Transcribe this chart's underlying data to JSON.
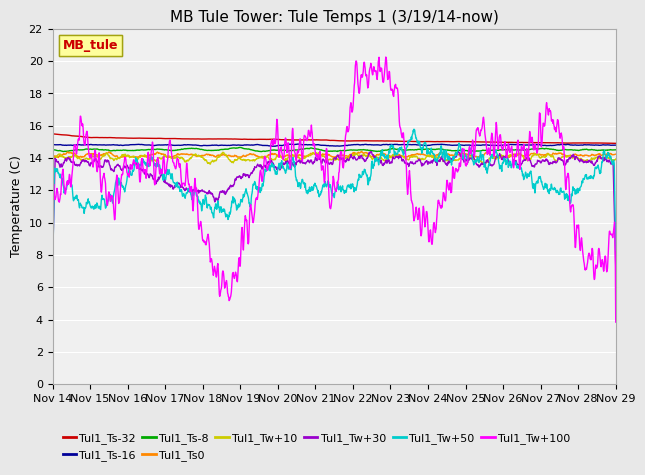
{
  "title": "MB Tule Tower: Tule Temps 1 (3/19/14-now)",
  "ylabel": "Temperature (C)",
  "ylim": [
    0,
    22
  ],
  "yticks": [
    0,
    2,
    4,
    6,
    8,
    10,
    12,
    14,
    16,
    18,
    20,
    22
  ],
  "xlim": [
    0,
    15
  ],
  "xtick_labels": [
    "Nov 14",
    "Nov 15",
    "Nov 16",
    "Nov 17",
    "Nov 18",
    "Nov 19",
    "Nov 20",
    "Nov 21",
    "Nov 22",
    "Nov 23",
    "Nov 24",
    "Nov 25",
    "Nov 26",
    "Nov 27",
    "Nov 28",
    "Nov 29"
  ],
  "legend_label": "MB_tule",
  "series_labels": [
    "Tul1_Ts-32",
    "Tul1_Ts-16",
    "Tul1_Ts-8",
    "Tul1_Ts0",
    "Tul1_Tw+10",
    "Tul1_Tw+30",
    "Tul1_Tw+50",
    "Tul1_Tw+100"
  ],
  "series_colors": [
    "#cc0000",
    "#000099",
    "#00aa00",
    "#ff8800",
    "#cccc00",
    "#9900cc",
    "#00cccc",
    "#ff00ff"
  ],
  "background_color": "#e8e8e8",
  "plot_bg_color": "#f0f0f0",
  "grid_color": "#ffffff",
  "title_fontsize": 11,
  "tick_fontsize": 8,
  "ylabel_fontsize": 9,
  "legend_fontsize": 8,
  "line_width": 1.0
}
